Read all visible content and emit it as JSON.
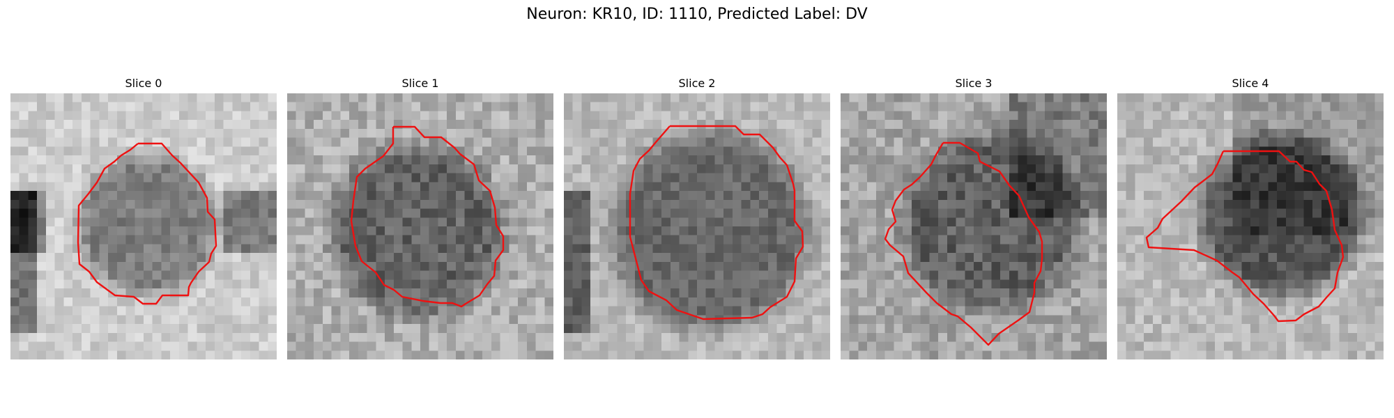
{
  "title": "Neuron: KR10, ID: 1110, Predicted Label: DV",
  "contour_color": "#ee1111",
  "slices": [
    {
      "label": "Slice 0"
    },
    {
      "label": "Slice 1"
    },
    {
      "label": "Slice 2"
    },
    {
      "label": "Slice 3"
    },
    {
      "label": "Slice 4"
    }
  ]
}
